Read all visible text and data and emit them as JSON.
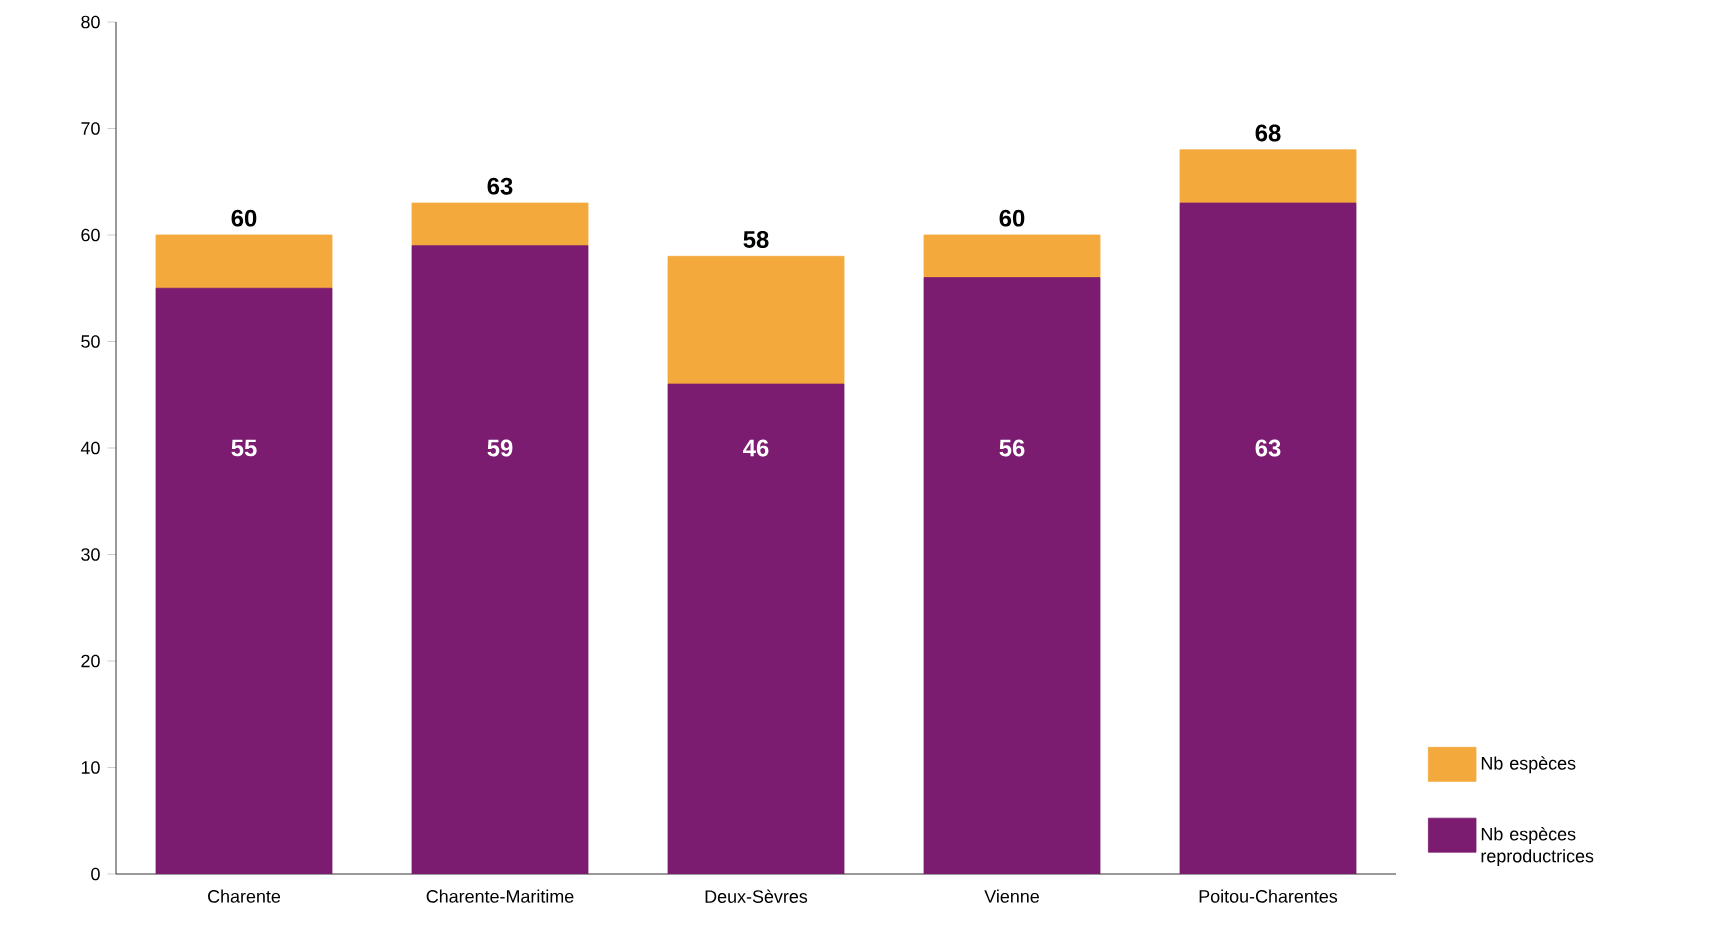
{
  "chart_data": {
    "type": "bar",
    "stacked": true,
    "categories": [
      "Charente",
      "Charente-Maritime",
      "Deux-Sèvres",
      "Vienne",
      "Poitou-Charentes"
    ],
    "series": [
      {
        "name": "Nb espèces reproductrices",
        "color": "#7b1c70",
        "values": [
          55,
          59,
          46,
          56,
          63
        ],
        "value_labels": [
          "55",
          "59",
          "46",
          "56",
          "63"
        ]
      },
      {
        "name": "Nb espèces",
        "color": "#f4a93c",
        "values": [
          5,
          4,
          12,
          4,
          5
        ]
      }
    ],
    "totals": [
      "60",
      "63",
      "58",
      "60",
      "68"
    ],
    "ylim": [
      0,
      80
    ],
    "yticks": [
      0,
      10,
      20,
      30,
      40,
      50,
      60,
      70,
      80
    ],
    "legend": "bottom right",
    "grid": false
  }
}
